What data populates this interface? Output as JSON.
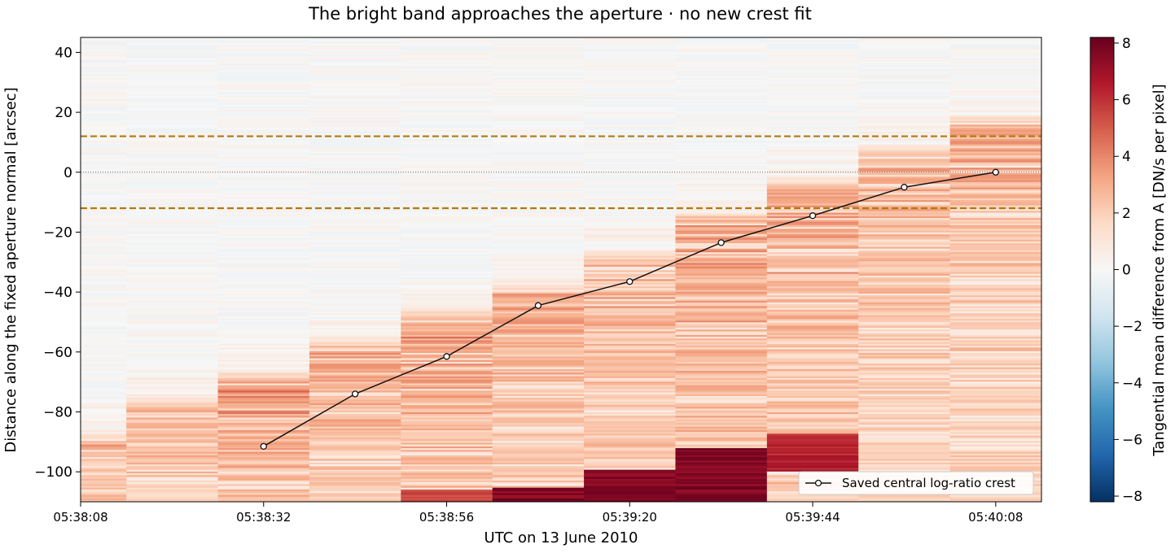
{
  "chart_data": {
    "type": "heatmap",
    "title": "The bright band approaches the aperture · no new crest fit",
    "xlabel": "UTC on 13 June 2010",
    "ylabel": "Distance along the fixed aperture normal [arcsec]",
    "xlim": [
      "05:38:08",
      "05:40:14"
    ],
    "ylim": [
      -110,
      45
    ],
    "x_ticks": [
      "05:38:08",
      "05:38:32",
      "05:38:56",
      "05:39:20",
      "05:39:44",
      "05:40:08"
    ],
    "y_ticks": [
      40,
      20,
      0,
      -20,
      -40,
      -60,
      -80,
      -100
    ],
    "frame_times": [
      "05:38:08",
      "05:38:20",
      "05:38:32",
      "05:38:44",
      "05:38:56",
      "05:39:08",
      "05:39:20",
      "05:39:32",
      "05:39:44",
      "05:39:56",
      "05:40:08"
    ],
    "band_edge_arcsec": [
      -85,
      -73,
      -65,
      -54,
      -44,
      -35,
      -25,
      -12,
      0,
      10,
      20
    ],
    "band_peak_value": [
      3.5,
      3.5,
      4.5,
      4.0,
      4.5,
      4.0,
      4.0,
      4.5,
      4.5,
      4.0,
      4.0
    ],
    "bottom_intense": [
      {
        "time": "05:38:56",
        "from": -110,
        "to": -106,
        "value": 6
      },
      {
        "time": "05:39:08",
        "from": -110,
        "to": -105,
        "value": 8.2
      },
      {
        "time": "05:39:20",
        "from": -110,
        "to": -99,
        "value": 8.2
      },
      {
        "time": "05:39:32",
        "from": -110,
        "to": -92,
        "value": 8.2
      },
      {
        "time": "05:39:44",
        "from": -100,
        "to": -87,
        "value": 7.0
      }
    ],
    "aperture_bounds": [
      12,
      -12
    ],
    "zero_line": 0,
    "series": [
      {
        "name": "Saved central log-ratio crest",
        "x": [
          "05:38:32",
          "05:38:44",
          "05:38:56",
          "05:39:08",
          "05:39:20",
          "05:39:32",
          "05:39:44",
          "05:39:56",
          "05:40:08"
        ],
        "y": [
          -91.5,
          -74,
          -61.5,
          -44.5,
          -36.5,
          -23.5,
          -14.5,
          -5,
          0
        ]
      }
    ],
    "legend_position": "lower-right",
    "colorbar": {
      "label": "Tangential mean difference from A [DN/s per pixel]",
      "range": [
        -8.2,
        8.2
      ],
      "ticks": [
        8,
        6,
        4,
        2,
        0,
        -2,
        -4,
        -6,
        -8
      ],
      "colormap": "RdBu_r"
    },
    "colors": {
      "aperture_line": "#b07a10",
      "crest_line": "#111111",
      "zero_line": "#555555"
    }
  }
}
